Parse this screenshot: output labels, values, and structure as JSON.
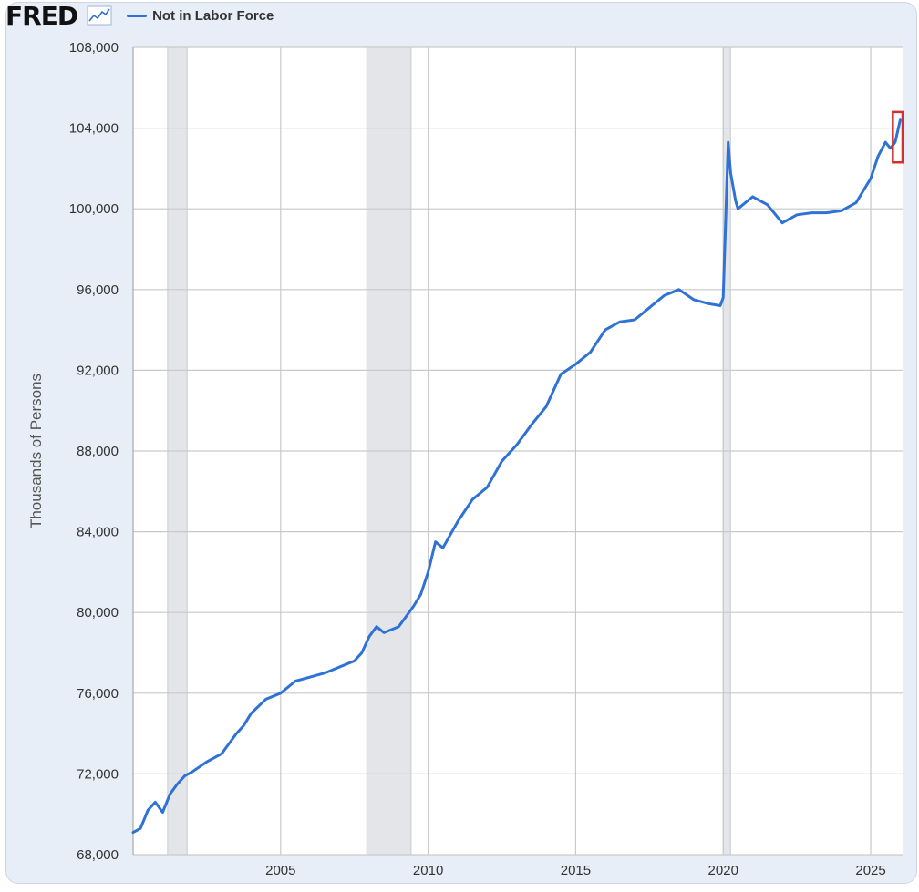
{
  "header": {
    "logo_text": "FRED",
    "logo_icon": "line-chart-icon"
  },
  "colors": {
    "series": "#2f72d6",
    "recession": "#e3e5e8",
    "grid": "#c9c9c9",
    "highlight_box": "#d32f2f",
    "card_bg": "#e8eef7"
  },
  "chart_data": {
    "type": "line",
    "ylabel": "Thousands of Persons",
    "ylim": [
      68000,
      108000
    ],
    "xlim": [
      2000.0,
      2026.08
    ],
    "yticks": [
      68000,
      72000,
      76000,
      80000,
      84000,
      88000,
      92000,
      96000,
      100000,
      104000,
      108000
    ],
    "ytick_labels": [
      "68,000",
      "72,000",
      "76,000",
      "80,000",
      "84,000",
      "88,000",
      "92,000",
      "96,000",
      "100,000",
      "104,000",
      "108,000"
    ],
    "xticks": [
      2005,
      2010,
      2015,
      2020,
      2025
    ],
    "xtick_labels": [
      "2005",
      "2010",
      "2015",
      "2020",
      "2025"
    ],
    "grid": true,
    "legend_position": "top-left",
    "recessions": [
      [
        2001.17,
        2001.83
      ],
      [
        2007.92,
        2009.42
      ],
      [
        2020.0,
        2020.25
      ]
    ],
    "highlight_box": {
      "x": [
        2025.75,
        2026.08
      ],
      "y": [
        102300,
        104800
      ]
    },
    "series": [
      {
        "name": "Not in Labor Force",
        "x": [
          2000.0,
          2000.25,
          2000.5,
          2000.75,
          2001.0,
          2001.25,
          2001.5,
          2001.75,
          2002.0,
          2002.5,
          2003.0,
          2003.5,
          2003.75,
          2004.0,
          2004.5,
          2005.0,
          2005.5,
          2006.0,
          2006.5,
          2007.0,
          2007.5,
          2007.75,
          2008.0,
          2008.25,
          2008.5,
          2009.0,
          2009.5,
          2009.75,
          2010.0,
          2010.25,
          2010.5,
          2011.0,
          2011.5,
          2012.0,
          2012.5,
          2013.0,
          2013.5,
          2014.0,
          2014.5,
          2015.0,
          2015.5,
          2016.0,
          2016.5,
          2017.0,
          2017.5,
          2018.0,
          2018.5,
          2019.0,
          2019.5,
          2019.9,
          2020.0,
          2020.17,
          2020.25,
          2020.42,
          2020.5,
          2021.0,
          2021.5,
          2022.0,
          2022.5,
          2023.0,
          2023.5,
          2024.0,
          2024.5,
          2025.0,
          2025.25,
          2025.5,
          2025.67,
          2025.83,
          2026.0
        ],
        "y": [
          69100,
          69300,
          70200,
          70600,
          70100,
          71000,
          71500,
          71900,
          72100,
          72600,
          73000,
          74000,
          74400,
          75000,
          75700,
          76000,
          76600,
          76800,
          77000,
          77300,
          77600,
          78000,
          78800,
          79300,
          79000,
          79300,
          80300,
          80900,
          82000,
          83500,
          83200,
          84500,
          85600,
          86200,
          87500,
          88300,
          89300,
          90200,
          91800,
          92300,
          92900,
          94000,
          94400,
          94500,
          95100,
          95700,
          96000,
          95500,
          95300,
          95200,
          95600,
          103300,
          101800,
          100400,
          100000,
          100600,
          100200,
          99300,
          99700,
          99800,
          99800,
          99900,
          100300,
          101500,
          102600,
          103300,
          103000,
          103300,
          104400
        ]
      }
    ]
  }
}
